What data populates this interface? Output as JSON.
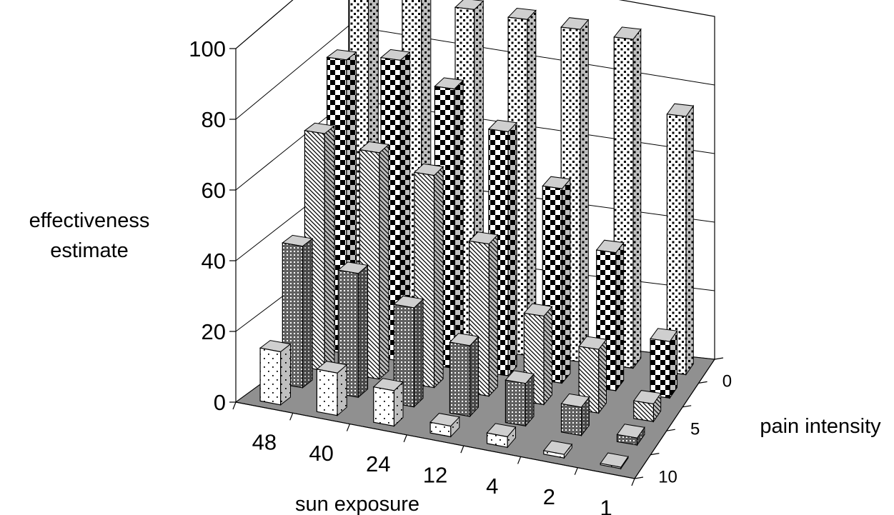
{
  "chart_data": {
    "type": "bar",
    "subtype": "3d-bar",
    "title": "",
    "xlabel": "sun exposure",
    "ylabel": "effectiveness estimate",
    "zlabel": "pain intensity",
    "categories": [
      "48",
      "40",
      "24",
      "12",
      "4",
      "2",
      "1"
    ],
    "depth_tick_labels": [
      "0",
      "5",
      "10"
    ],
    "yticks": [
      "0",
      "20",
      "40",
      "60",
      "80",
      "100"
    ],
    "ylim": [
      0,
      100
    ],
    "grid": true,
    "legend": "none",
    "series": [
      {
        "values": [
          97,
          97,
          96,
          95,
          94,
          93,
          73
        ]
      },
      {
        "values": [
          83,
          85,
          79,
          69,
          55,
          39,
          16
        ]
      },
      {
        "values": [
          67,
          64,
          60,
          43,
          25,
          18,
          5
        ]
      },
      {
        "values": [
          40,
          35,
          28,
          20,
          12,
          8,
          2
        ]
      },
      {
        "values": [
          15,
          12,
          10,
          3,
          3,
          1,
          0
        ]
      }
    ],
    "colors": {
      "floor": "#909090",
      "walls": "#ffffff",
      "gridline": "#000000"
    }
  }
}
